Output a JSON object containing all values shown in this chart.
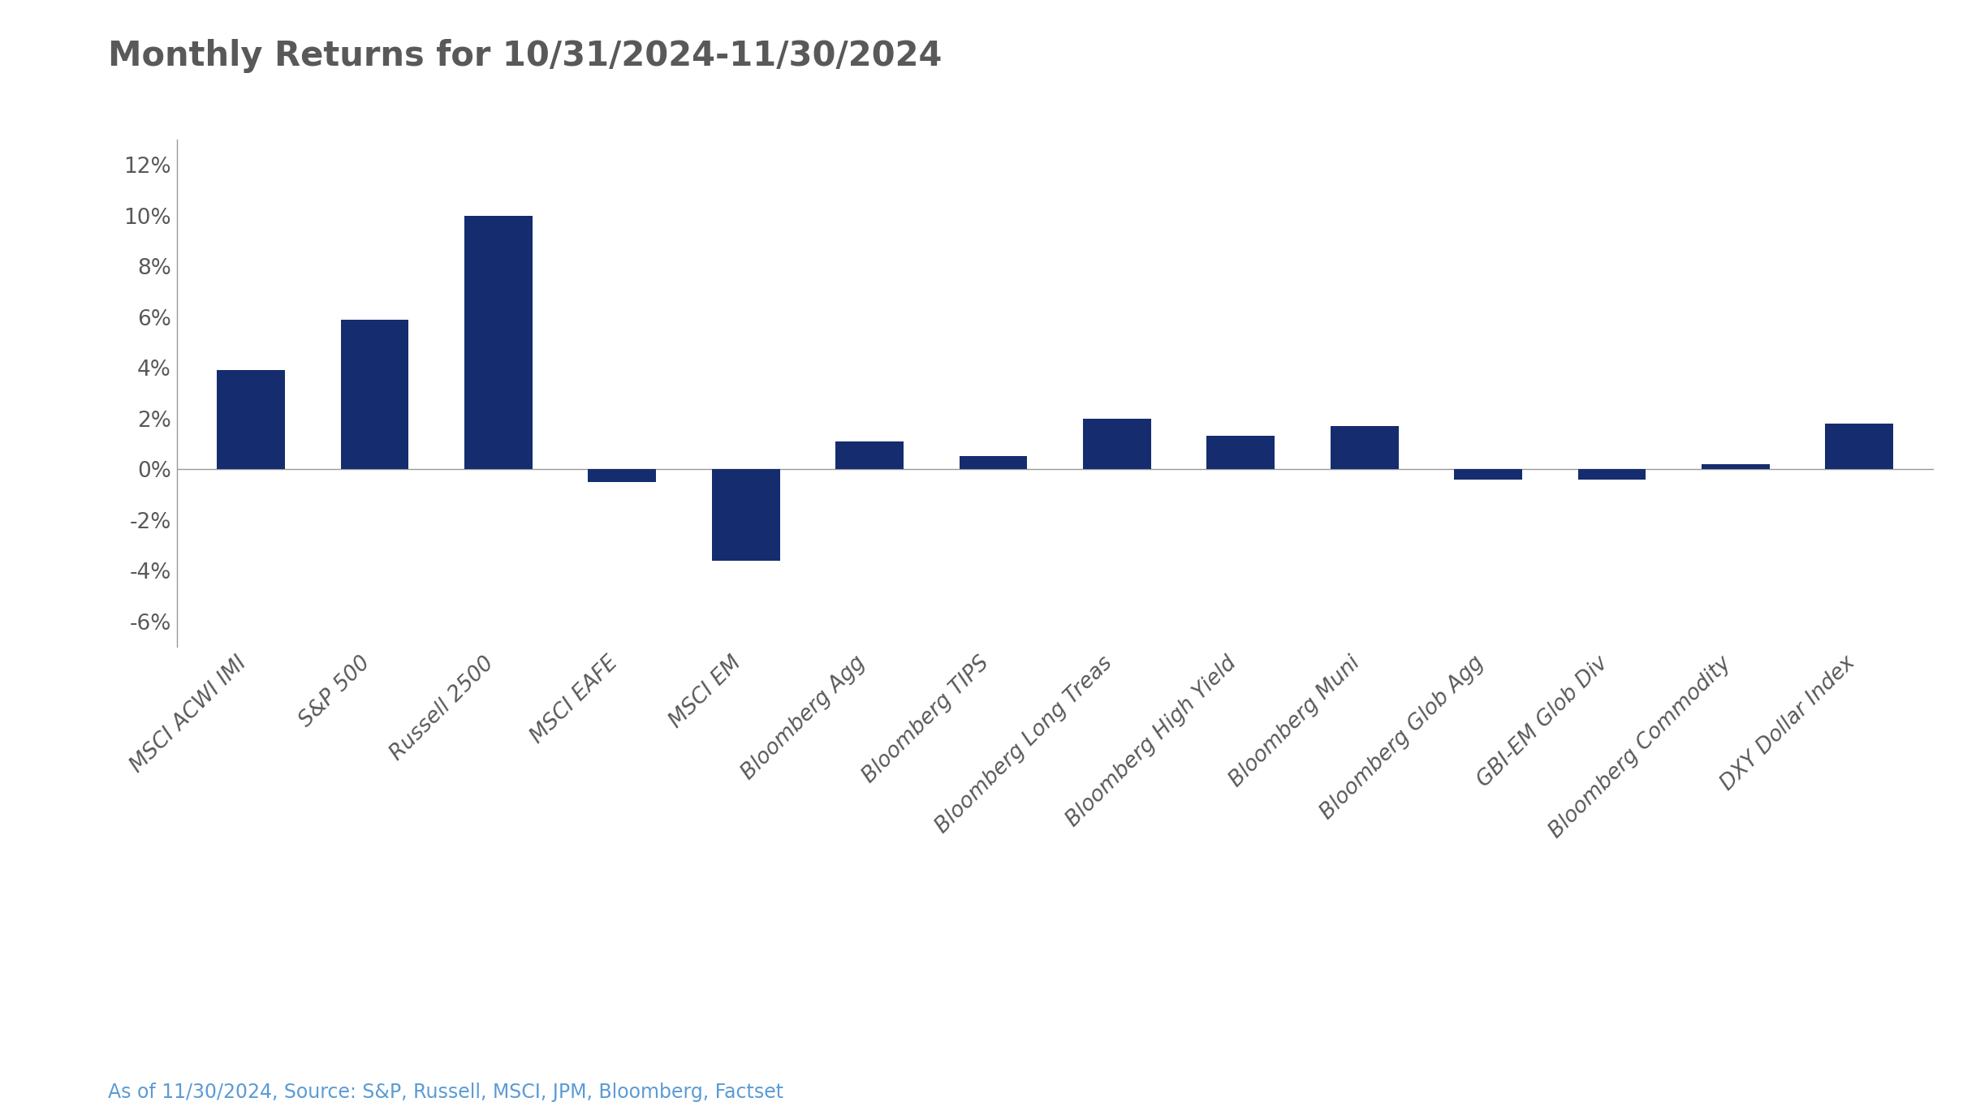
{
  "title": "Monthly Returns for 10/31/2024-11/30/2024",
  "categories": [
    "MSCI ACWI IMI",
    "S&P 500",
    "Russell 2500",
    "MSCI EAFE",
    "MSCI EM",
    "Bloomberg Agg",
    "Bloomberg TIPS",
    "Bloomberg Long Treas",
    "Bloomberg High Yield",
    "Bloomberg Muni",
    "Bloomberg Glob Agg",
    "GBI-EM Glob Div",
    "Bloomberg Commodity",
    "DXY Dollar Index"
  ],
  "values": [
    3.9,
    5.9,
    10.0,
    -0.5,
    -3.6,
    1.1,
    0.5,
    2.0,
    1.3,
    1.7,
    -0.4,
    -0.4,
    0.2,
    1.8
  ],
  "bar_color": "#152c6e",
  "background_color": "#ffffff",
  "title_color": "#595959",
  "tick_color": "#595959",
  "axis_color": "#999999",
  "ylim": [
    -7,
    13
  ],
  "yticks": [
    -6,
    -4,
    -2,
    0,
    2,
    4,
    6,
    8,
    10,
    12
  ],
  "title_fontsize": 30,
  "tick_fontsize": 19,
  "label_fontsize": 19,
  "footnote": "As of 11/30/2024, Source: S&P, Russell, MSCI, JPM, Bloomberg, Factset",
  "footnote_color": "#5b9bd5",
  "footnote_fontsize": 17,
  "bar_width": 0.55
}
